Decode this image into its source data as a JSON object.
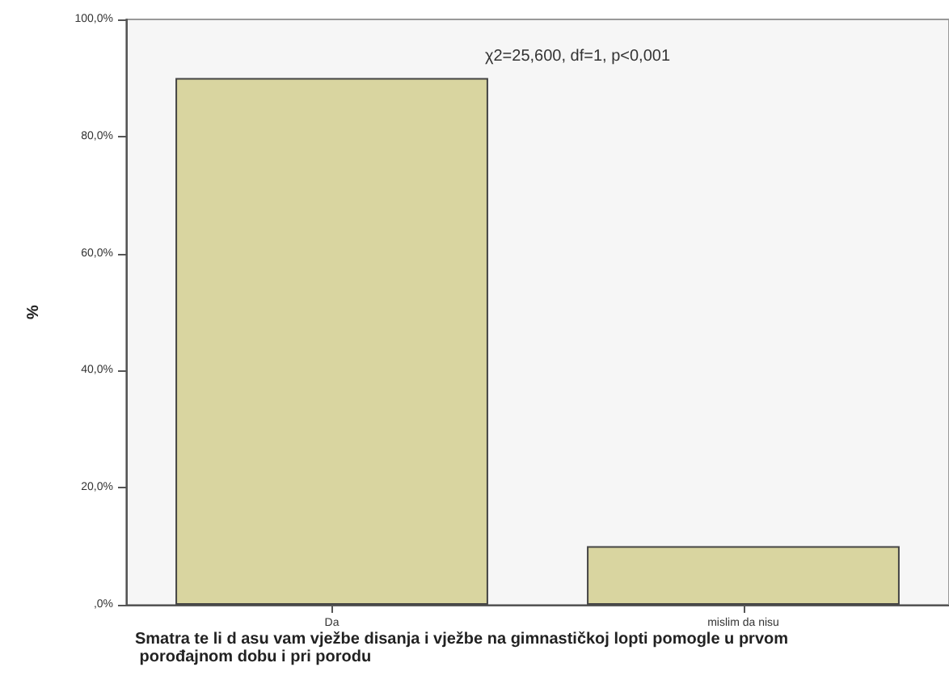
{
  "chart_data": {
    "type": "bar",
    "categories": [
      "Da",
      "mislim da nisu"
    ],
    "values": [
      90,
      10
    ],
    "color": "#d9d5a0",
    "xlabel": "Smatra te li d asu vam vježbe disanja i vježbe na gimnastičkoj lopti pomogle u prvom porođajnom dobu i pri porodu",
    "ylabel": "%",
    "annotations": [
      "χ2=25,600, df=1, p<0,001"
    ],
    "ylim": [
      0,
      100
    ],
    "yticks": [
      {
        "value": 0,
        "label": ",0%"
      },
      {
        "value": 20,
        "label": "20,0%"
      },
      {
        "value": 40,
        "label": "40,0%"
      },
      {
        "value": 60,
        "label": "60,0%"
      },
      {
        "value": 80,
        "label": "80,0%"
      },
      {
        "value": 100,
        "label": "100,0%"
      }
    ],
    "grid": false
  }
}
